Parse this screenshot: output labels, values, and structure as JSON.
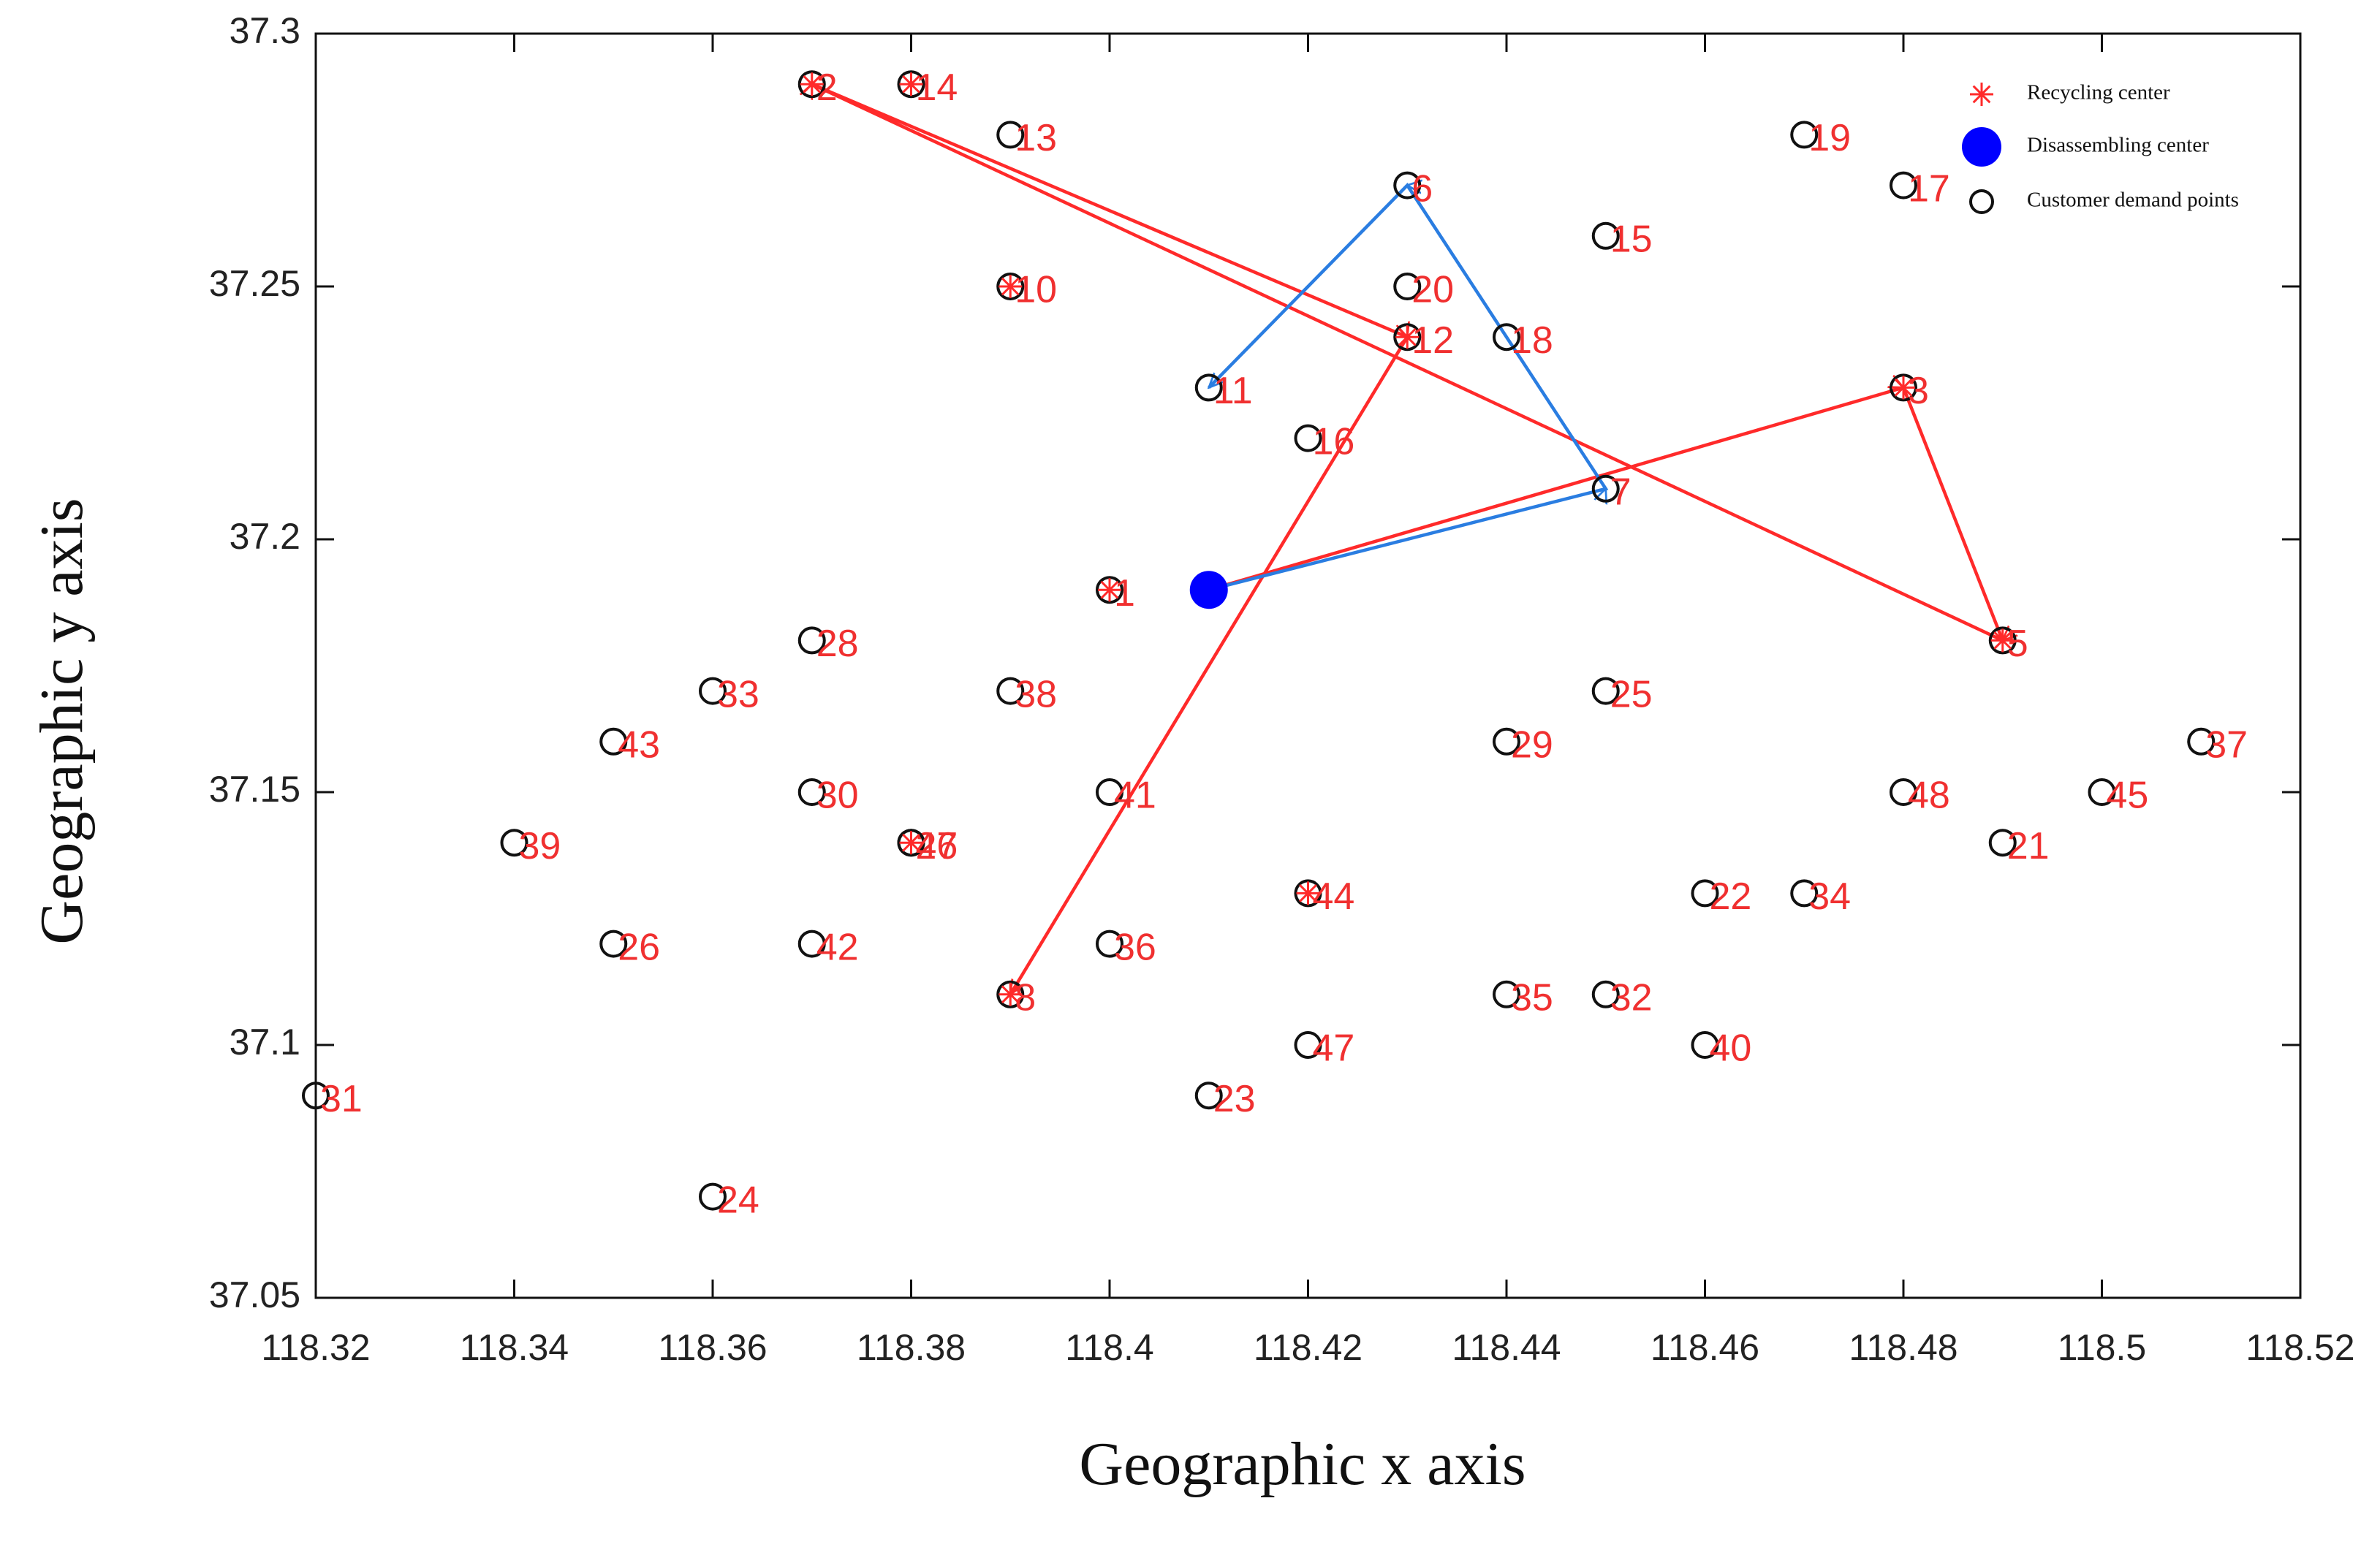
{
  "chart_data": {
    "type": "scatter",
    "x_label": "Geographic x axis",
    "y_label": "Geographic y axis",
    "xlim": [
      118.32,
      118.52
    ],
    "xticks": [
      118.32,
      118.34,
      118.36,
      118.38,
      118.4,
      118.42,
      118.44,
      118.46,
      118.48,
      118.5,
      118.52
    ],
    "ylim": [
      37.05,
      37.3
    ],
    "yticks": [
      37.05,
      37.1,
      37.15,
      37.2,
      37.25,
      37.3
    ],
    "legend": "upper right",
    "series": [
      {
        "name": "Recycling center",
        "marker": "star",
        "color": "#ff2a2a",
        "x": [
          118.37,
          118.38,
          118.43,
          118.39,
          118.48,
          118.49,
          118.4,
          118.42,
          118.38,
          118.39
        ],
        "y": [
          37.29,
          37.29,
          37.24,
          37.11,
          37.23,
          37.18,
          37.19,
          37.13,
          37.14,
          37.25
        ]
      },
      {
        "name": "Disassembling center",
        "marker": "dot",
        "color": "#0000ff",
        "x": [
          118.41
        ],
        "y": [
          37.19
        ]
      },
      {
        "name": "Customer demand points",
        "marker": "circle",
        "color": "#111111",
        "x": [
          118.37,
          118.38,
          118.39,
          118.47,
          118.43,
          118.48,
          118.45,
          118.39,
          118.43,
          118.43,
          118.44,
          118.41,
          118.48,
          118.42,
          118.45,
          118.4,
          118.49,
          118.37,
          118.36,
          118.39,
          118.45,
          118.35,
          118.44,
          118.51,
          118.37,
          118.4,
          118.48,
          118.5,
          118.34,
          118.38,
          118.38,
          118.49,
          118.42,
          118.46,
          118.47,
          118.35,
          118.37,
          118.4,
          118.39,
          118.44,
          118.45,
          118.42,
          118.46,
          118.41,
          118.32,
          118.36
        ],
        "y": [
          37.29,
          37.29,
          37.28,
          37.28,
          37.27,
          37.27,
          37.26,
          37.25,
          37.25,
          37.24,
          37.24,
          37.23,
          37.23,
          37.22,
          37.21,
          37.19,
          37.18,
          37.18,
          37.17,
          37.17,
          37.17,
          37.16,
          37.16,
          37.16,
          37.15,
          37.15,
          37.15,
          37.15,
          37.14,
          37.14,
          37.14,
          37.14,
          37.13,
          37.13,
          37.13,
          37.12,
          37.12,
          37.12,
          37.11,
          37.11,
          37.11,
          37.1,
          37.1,
          37.09,
          37.09,
          37.07
        ],
        "labels": [
          "2",
          "14",
          "13",
          "19",
          "6",
          "17",
          "15",
          "10",
          "20",
          "12",
          "18",
          "11",
          "3",
          "16",
          "7",
          "1",
          "5",
          "28",
          "33",
          "38",
          "25",
          "43",
          "29",
          "37",
          "30",
          "41",
          "48",
          "45",
          "39",
          "27",
          "46",
          "21",
          "44",
          "22",
          "34",
          "26",
          "42",
          "36",
          "8",
          "35",
          "32",
          "47",
          "40",
          "23",
          "31",
          "24"
        ]
      }
    ],
    "routes": [
      {
        "color": "#ff2a2a",
        "x": [
          118.41,
          118.48,
          118.49,
          118.37,
          118.43,
          118.39
        ],
        "y": [
          37.19,
          37.23,
          37.18,
          37.29,
          37.24,
          37.11
        ]
      },
      {
        "color": "#2a7de1",
        "x": [
          118.41,
          118.45,
          118.43,
          118.41
        ],
        "y": [
          37.19,
          37.21,
          37.27,
          37.23
        ]
      }
    ]
  }
}
